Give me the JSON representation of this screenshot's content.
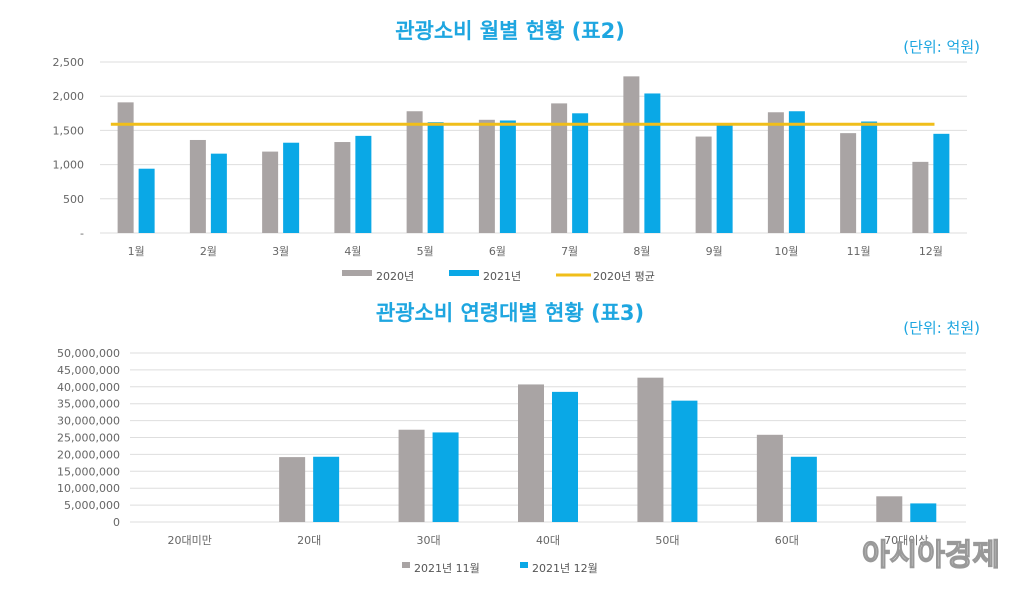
{
  "chart_data": [
    {
      "type": "bar",
      "title": "관광소비 월별 현황 (표2)",
      "unit": "(단위: 억원)",
      "categories": [
        "1월",
        "2월",
        "3월",
        "4월",
        "5월",
        "6월",
        "7월",
        "8월",
        "9월",
        "10월",
        "11월",
        "12월"
      ],
      "series": [
        {
          "name": "2020년",
          "color": "#a9a4a4",
          "values": [
            1910,
            1360,
            1190,
            1330,
            1780,
            1655,
            1895,
            2290,
            1410,
            1765,
            1460,
            1040
          ]
        },
        {
          "name": "2021년",
          "color": "#0aa8e6",
          "values": [
            940,
            1160,
            1320,
            1420,
            1620,
            1645,
            1750,
            2040,
            1580,
            1780,
            1630,
            1450
          ]
        }
      ],
      "reference_line": {
        "name": "2020년 평균",
        "color": "#f0be1a",
        "value": 1590
      },
      "ylim": [
        0,
        2500
      ],
      "yticks": [
        "-",
        "500",
        "1,000",
        "1,500",
        "2,000",
        "2,500"
      ],
      "grid": true,
      "legend": "bottom"
    },
    {
      "type": "bar",
      "title": "관광소비 연령대별 현황 (표3)",
      "unit": "(단위: 천원)",
      "categories": [
        "20대미만",
        "20대",
        "30대",
        "40대",
        "50대",
        "60대",
        "70대이상"
      ],
      "series": [
        {
          "name": "2021년 11월",
          "color": "#a9a4a4",
          "values": [
            0,
            19200000,
            27300000,
            40700000,
            42700000,
            25800000,
            7600000
          ]
        },
        {
          "name": "2021년 12월",
          "color": "#0aa8e6",
          "values": [
            0,
            19300000,
            26500000,
            38500000,
            35900000,
            19300000,
            5500000
          ]
        }
      ],
      "ylim": [
        0,
        50000000
      ],
      "yticks": [
        "0",
        "5,000,000",
        "10,000,000",
        "15,000,000",
        "20,000,000",
        "25,000,000",
        "30,000,000",
        "35,000,000",
        "40,000,000",
        "45,000,000",
        "50,000,000"
      ],
      "grid": true,
      "legend": "bottom"
    }
  ],
  "watermark": "아시아경제"
}
